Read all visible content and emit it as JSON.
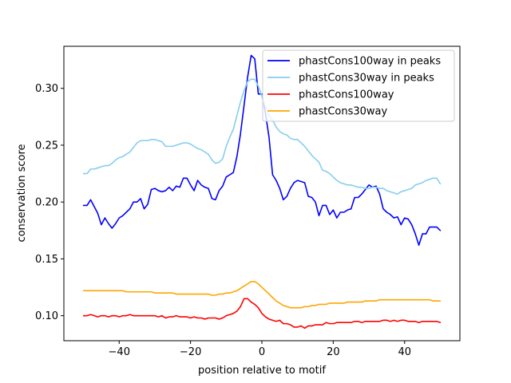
{
  "chart_data": {
    "type": "line",
    "xlabel": "position relative to motif",
    "ylabel": "conservation score",
    "xlim": [
      -55.5,
      55.5
    ],
    "ylim": [
      0.078,
      0.337
    ],
    "xticks": [
      -40,
      -20,
      0,
      20,
      40
    ],
    "yticks": [
      0.1,
      0.15,
      0.2,
      0.25,
      0.3
    ],
    "xtick_labels": [
      "−40",
      "−20",
      "0",
      "20",
      "40"
    ],
    "ytick_labels": [
      "0.10",
      "0.15",
      "0.20",
      "0.25",
      "0.30"
    ],
    "grid": false,
    "legend_position": "top-right",
    "series": [
      {
        "name": "phastCons100way in peaks",
        "color": "#0000ff",
        "x": [
          -50,
          -49,
          -48,
          -47,
          -46,
          -45,
          -44,
          -43,
          -42,
          -41,
          -40,
          -39,
          -38,
          -37,
          -36,
          -35,
          -34,
          -33,
          -32,
          -31,
          -30,
          -29,
          -28,
          -27,
          -26,
          -25,
          -24,
          -23,
          -22,
          -21,
          -20,
          -19,
          -18,
          -17,
          -16,
          -15,
          -14,
          -13,
          -12,
          -11,
          -10,
          -9,
          -8,
          -7,
          -6,
          -5,
          -4,
          -3,
          -2,
          -1,
          0,
          1,
          2,
          3,
          4,
          5,
          6,
          7,
          8,
          9,
          10,
          11,
          12,
          13,
          14,
          15,
          16,
          17,
          18,
          19,
          20,
          21,
          22,
          23,
          24,
          25,
          26,
          27,
          28,
          29,
          30,
          31,
          32,
          33,
          34,
          35,
          36,
          37,
          38,
          39,
          40,
          41,
          42,
          43,
          44,
          45,
          46,
          47,
          48,
          49,
          50
        ],
        "y": [
          0.197,
          0.197,
          0.202,
          0.196,
          0.19,
          0.18,
          0.186,
          0.181,
          0.177,
          0.181,
          0.186,
          0.188,
          0.191,
          0.194,
          0.2,
          0.2,
          0.203,
          0.194,
          0.198,
          0.211,
          0.212,
          0.21,
          0.209,
          0.21,
          0.213,
          0.21,
          0.214,
          0.213,
          0.221,
          0.221,
          0.215,
          0.21,
          0.219,
          0.215,
          0.213,
          0.212,
          0.203,
          0.202,
          0.21,
          0.214,
          0.222,
          0.224,
          0.226,
          0.24,
          0.26,
          0.285,
          0.31,
          0.329,
          0.326,
          0.295,
          0.295,
          0.278,
          0.257,
          0.224,
          0.219,
          0.212,
          0.202,
          0.205,
          0.212,
          0.217,
          0.219,
          0.218,
          0.217,
          0.205,
          0.204,
          0.2,
          0.188,
          0.197,
          0.197,
          0.189,
          0.193,
          0.186,
          0.191,
          0.191,
          0.193,
          0.194,
          0.204,
          0.204,
          0.207,
          0.211,
          0.215,
          0.213,
          0.214,
          0.207,
          0.194,
          0.191,
          0.189,
          0.186,
          0.187,
          0.18,
          0.186,
          0.185,
          0.18,
          0.172,
          0.162,
          0.172,
          0.172,
          0.178,
          0.178,
          0.178,
          0.175
        ]
      },
      {
        "name": "phastCons30way in peaks",
        "color": "#87ceeb",
        "x": [
          -50,
          -49,
          -48,
          -47,
          -46,
          -45,
          -44,
          -43,
          -42,
          -41,
          -40,
          -39,
          -38,
          -37,
          -36,
          -35,
          -34,
          -33,
          -32,
          -31,
          -30,
          -29,
          -28,
          -27,
          -26,
          -25,
          -24,
          -23,
          -22,
          -21,
          -20,
          -19,
          -18,
          -17,
          -16,
          -15,
          -14,
          -13,
          -12,
          -11,
          -10,
          -9,
          -8,
          -7,
          -6,
          -5,
          -4,
          -3,
          -2,
          -1,
          0,
          1,
          2,
          3,
          4,
          5,
          6,
          7,
          8,
          9,
          10,
          11,
          12,
          13,
          14,
          15,
          16,
          17,
          18,
          19,
          20,
          21,
          22,
          23,
          24,
          25,
          26,
          27,
          28,
          29,
          30,
          31,
          32,
          33,
          34,
          35,
          36,
          37,
          38,
          39,
          40,
          41,
          42,
          43,
          44,
          45,
          46,
          47,
          48,
          49,
          50
        ],
        "y": [
          0.225,
          0.225,
          0.229,
          0.229,
          0.23,
          0.231,
          0.232,
          0.232,
          0.234,
          0.237,
          0.239,
          0.24,
          0.242,
          0.244,
          0.248,
          0.252,
          0.254,
          0.254,
          0.254,
          0.255,
          0.255,
          0.254,
          0.253,
          0.249,
          0.249,
          0.249,
          0.25,
          0.251,
          0.252,
          0.252,
          0.251,
          0.249,
          0.247,
          0.246,
          0.244,
          0.242,
          0.237,
          0.234,
          0.235,
          0.238,
          0.249,
          0.257,
          0.264,
          0.276,
          0.288,
          0.298,
          0.306,
          0.308,
          0.308,
          0.302,
          0.293,
          0.284,
          0.276,
          0.272,
          0.266,
          0.262,
          0.26,
          0.259,
          0.256,
          0.255,
          0.255,
          0.252,
          0.249,
          0.245,
          0.241,
          0.238,
          0.235,
          0.228,
          0.227,
          0.225,
          0.222,
          0.219,
          0.217,
          0.216,
          0.215,
          0.215,
          0.214,
          0.213,
          0.213,
          0.212,
          0.212,
          0.213,
          0.213,
          0.212,
          0.212,
          0.21,
          0.209,
          0.208,
          0.207,
          0.209,
          0.21,
          0.211,
          0.212,
          0.215,
          0.216,
          0.217,
          0.219,
          0.22,
          0.221,
          0.221,
          0.216
        ]
      },
      {
        "name": "phastCons100way",
        "color": "#ff0000",
        "x": [
          -50,
          -49,
          -48,
          -47,
          -46,
          -45,
          -44,
          -43,
          -42,
          -41,
          -40,
          -39,
          -38,
          -37,
          -36,
          -35,
          -34,
          -33,
          -32,
          -31,
          -30,
          -29,
          -28,
          -27,
          -26,
          -25,
          -24,
          -23,
          -22,
          -21,
          -20,
          -19,
          -18,
          -17,
          -16,
          -15,
          -14,
          -13,
          -12,
          -11,
          -10,
          -9,
          -8,
          -7,
          -6,
          -5,
          -4,
          -3,
          -2,
          -1,
          0,
          1,
          2,
          3,
          4,
          5,
          6,
          7,
          8,
          9,
          10,
          11,
          12,
          13,
          14,
          15,
          16,
          17,
          18,
          19,
          20,
          21,
          22,
          23,
          24,
          25,
          26,
          27,
          28,
          29,
          30,
          31,
          32,
          33,
          34,
          35,
          36,
          37,
          38,
          39,
          40,
          41,
          42,
          43,
          44,
          45,
          46,
          47,
          48,
          49,
          50
        ],
        "y": [
          0.1,
          0.1,
          0.101,
          0.1,
          0.099,
          0.1,
          0.1,
          0.099,
          0.1,
          0.1,
          0.099,
          0.1,
          0.1,
          0.101,
          0.1,
          0.1,
          0.1,
          0.1,
          0.1,
          0.1,
          0.1,
          0.099,
          0.1,
          0.098,
          0.099,
          0.099,
          0.1,
          0.099,
          0.099,
          0.099,
          0.098,
          0.099,
          0.098,
          0.098,
          0.097,
          0.098,
          0.098,
          0.098,
          0.097,
          0.098,
          0.1,
          0.101,
          0.102,
          0.104,
          0.108,
          0.115,
          0.115,
          0.112,
          0.11,
          0.107,
          0.102,
          0.099,
          0.097,
          0.096,
          0.095,
          0.096,
          0.093,
          0.093,
          0.092,
          0.09,
          0.09,
          0.091,
          0.089,
          0.091,
          0.091,
          0.092,
          0.092,
          0.092,
          0.094,
          0.093,
          0.093,
          0.094,
          0.094,
          0.094,
          0.094,
          0.094,
          0.095,
          0.095,
          0.094,
          0.095,
          0.095,
          0.095,
          0.095,
          0.095,
          0.096,
          0.096,
          0.095,
          0.096,
          0.095,
          0.096,
          0.096,
          0.095,
          0.095,
          0.095,
          0.094,
          0.095,
          0.095,
          0.095,
          0.095,
          0.095,
          0.094
        ]
      },
      {
        "name": "phastCons30way",
        "color": "#ffa500",
        "x": [
          -50,
          -49,
          -48,
          -47,
          -46,
          -45,
          -44,
          -43,
          -42,
          -41,
          -40,
          -39,
          -38,
          -37,
          -36,
          -35,
          -34,
          -33,
          -32,
          -31,
          -30,
          -29,
          -28,
          -27,
          -26,
          -25,
          -24,
          -23,
          -22,
          -21,
          -20,
          -19,
          -18,
          -17,
          -16,
          -15,
          -14,
          -13,
          -12,
          -11,
          -10,
          -9,
          -8,
          -7,
          -6,
          -5,
          -4,
          -3,
          -2,
          -1,
          0,
          1,
          2,
          3,
          4,
          5,
          6,
          7,
          8,
          9,
          10,
          11,
          12,
          13,
          14,
          15,
          16,
          17,
          18,
          19,
          20,
          21,
          22,
          23,
          24,
          25,
          26,
          27,
          28,
          29,
          30,
          31,
          32,
          33,
          34,
          35,
          36,
          37,
          38,
          39,
          40,
          41,
          42,
          43,
          44,
          45,
          46,
          47,
          48,
          49,
          50
        ],
        "y": [
          0.122,
          0.122,
          0.122,
          0.122,
          0.122,
          0.122,
          0.122,
          0.122,
          0.122,
          0.122,
          0.122,
          0.122,
          0.121,
          0.121,
          0.121,
          0.121,
          0.121,
          0.121,
          0.121,
          0.121,
          0.12,
          0.12,
          0.12,
          0.12,
          0.12,
          0.12,
          0.119,
          0.119,
          0.119,
          0.119,
          0.119,
          0.119,
          0.119,
          0.119,
          0.119,
          0.119,
          0.118,
          0.118,
          0.119,
          0.119,
          0.12,
          0.12,
          0.121,
          0.122,
          0.124,
          0.126,
          0.128,
          0.13,
          0.13,
          0.128,
          0.125,
          0.122,
          0.119,
          0.116,
          0.113,
          0.111,
          0.109,
          0.108,
          0.107,
          0.107,
          0.107,
          0.107,
          0.108,
          0.108,
          0.109,
          0.109,
          0.11,
          0.11,
          0.11,
          0.111,
          0.111,
          0.111,
          0.111,
          0.111,
          0.112,
          0.112,
          0.112,
          0.112,
          0.112,
          0.113,
          0.113,
          0.113,
          0.113,
          0.114,
          0.114,
          0.114,
          0.114,
          0.114,
          0.114,
          0.114,
          0.114,
          0.114,
          0.114,
          0.114,
          0.114,
          0.114,
          0.114,
          0.114,
          0.113,
          0.113,
          0.113
        ]
      }
    ]
  }
}
